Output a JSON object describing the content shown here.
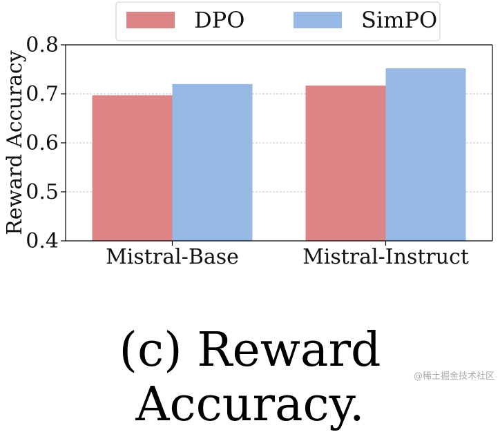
{
  "chart_data": {
    "type": "bar",
    "categories": [
      "Mistral-Base",
      "Mistral-Instruct"
    ],
    "series": [
      {
        "name": "DPO",
        "values": [
          0.697,
          0.717
        ],
        "color": "#dd8486"
      },
      {
        "name": "SimPO",
        "values": [
          0.72,
          0.752
        ],
        "color": "#96b8e4"
      }
    ],
    "ylabel": "Reward Accuracy",
    "xlabel": "",
    "ylim": [
      0.4,
      0.8
    ],
    "yticks": [
      "0.4",
      "0.5",
      "0.6",
      "0.7",
      "0.8"
    ],
    "grid": true,
    "legend": "top-center"
  },
  "caption": "(c) Reward Accuracy.",
  "watermark": "@稀土掘金技术社区"
}
